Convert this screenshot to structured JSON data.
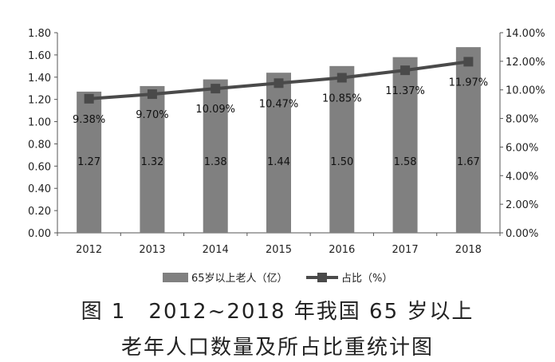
{
  "chart_data": {
    "type": "bar",
    "categories": [
      "2012",
      "2013",
      "2014",
      "2015",
      "2016",
      "2017",
      "2018"
    ],
    "series": [
      {
        "name": "65岁以上老人（亿）",
        "type": "bar",
        "axis": "left",
        "values": [
          1.27,
          1.32,
          1.38,
          1.44,
          1.5,
          1.58,
          1.67
        ],
        "labels": [
          "1.27",
          "1.32",
          "1.38",
          "1.44",
          "1.50",
          "1.58",
          "1.67"
        ],
        "color": "#808080"
      },
      {
        "name": "占比（%）",
        "type": "line",
        "axis": "right",
        "values": [
          9.38,
          9.7,
          10.09,
          10.47,
          10.85,
          11.37,
          11.97
        ],
        "labels": [
          "9.38%",
          "9.70%",
          "10.09%",
          "10.47%",
          "10.85%",
          "11.37%",
          "11.97%"
        ],
        "color": "#4a4a4a"
      }
    ],
    "y_left": {
      "lim": [
        0,
        1.8
      ],
      "ticks": [
        "0.00",
        "0.20",
        "0.40",
        "0.60",
        "0.80",
        "1.00",
        "1.20",
        "1.40",
        "1.60",
        "1.80"
      ]
    },
    "y_right": {
      "lim": [
        0,
        14
      ],
      "ticks": [
        "0.00%",
        "2.00%",
        "4.00%",
        "6.00%",
        "8.00%",
        "10.00%",
        "12.00%",
        "14.00%"
      ]
    },
    "legend_position": "bottom",
    "grid": false
  },
  "caption": {
    "line1": "图 1　2012~2018 年我国 65 岁以上",
    "line2": "老年人口数量及所占比重统计图"
  }
}
